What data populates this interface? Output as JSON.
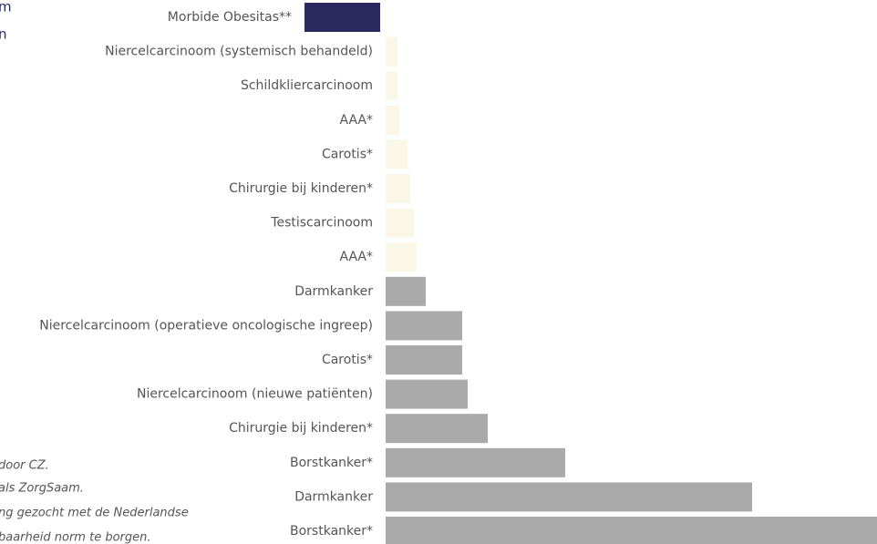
{
  "chart_data": {
    "type": "barh",
    "categories": [
      "Morbide Obesitas**",
      "Niercelcarcinoom (systemisch behandeld)",
      "Schildkliercarcinoom",
      "AAA*",
      "Carotis*",
      "Chirurgie bij kinderen*",
      "Testiscarcinoom",
      "AAA*",
      "Darmkanker",
      "Niercelcarcinoom (operatieve oncologische ingreep)",
      "Carotis*",
      "Niercelcarcinoom (nieuwe patiënten)",
      "Chirurgie bij kinderen*",
      "Borstkanker*",
      "Darmkanker",
      "Borstkanker*"
    ],
    "values": [
      -89,
      13,
      13,
      15,
      24,
      27,
      31,
      34,
      44,
      84,
      84,
      90,
      112,
      197,
      402,
      539
    ],
    "colors": [
      "#2b2a5e",
      "#fbf7e6",
      "#fbf7e6",
      "#fbf7e6",
      "#fbf7e6",
      "#fbf7e6",
      "#fbf7e6",
      "#fbf7e6",
      "#aaaaaa",
      "#aaaaaa",
      "#aaaaaa",
      "#aaaaaa",
      "#aaaaaa",
      "#aaaaaa",
      "#aaaaaa",
      "#aaaaaa"
    ],
    "side_text": [
      "m",
      "n"
    ],
    "footnotes": [
      "door CZ.",
      "als ZorgSaam.",
      "ng gezocht met de Nederlandse",
      "baarheid norm te borgen."
    ]
  }
}
